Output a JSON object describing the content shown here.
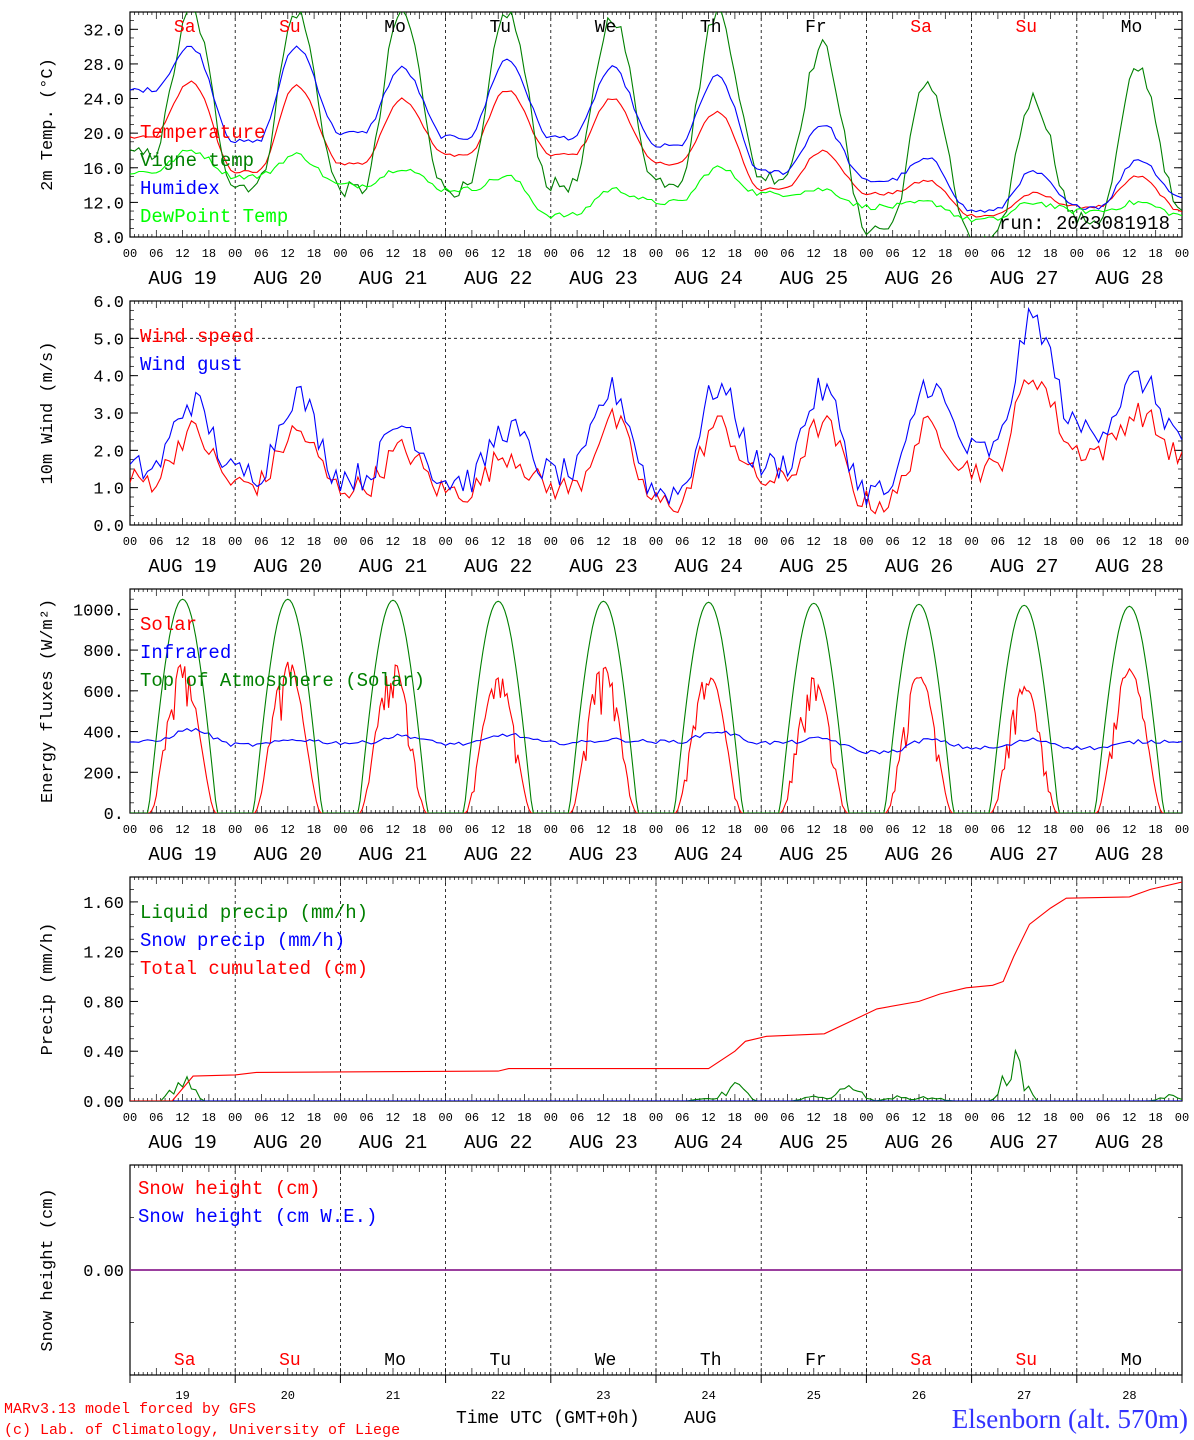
{
  "days": [
    {
      "abbr": "Sa",
      "date": "AUG 19",
      "num": "19",
      "color": "#ff0000"
    },
    {
      "abbr": "Su",
      "date": "AUG 20",
      "num": "20",
      "color": "#ff0000"
    },
    {
      "abbr": "Mo",
      "date": "AUG 21",
      "num": "21",
      "color": "#000000"
    },
    {
      "abbr": "Tu",
      "date": "AUG 22",
      "num": "22",
      "color": "#000000"
    },
    {
      "abbr": "We",
      "date": "AUG 23",
      "num": "23",
      "color": "#000000"
    },
    {
      "abbr": "Th",
      "date": "AUG 24",
      "num": "24",
      "color": "#000000"
    },
    {
      "abbr": "Fr",
      "date": "AUG 25",
      "num": "25",
      "color": "#000000"
    },
    {
      "abbr": "Sa",
      "date": "AUG 26",
      "num": "26",
      "color": "#ff0000"
    },
    {
      "abbr": "Su",
      "date": "AUG 27",
      "num": "27",
      "color": "#ff0000"
    },
    {
      "abbr": "Mo",
      "date": "AUG 28",
      "num": "28",
      "color": "#000000"
    }
  ],
  "hour_ticks": [
    "00",
    "06",
    "12",
    "18"
  ],
  "end_tick": "00",
  "run_label": "run: 2023081918",
  "footer": {
    "credit_line1": "MARv3.13 model forced by GFS",
    "credit_line2": "(c) Lab. of Climatology, University of Liege",
    "axis_title": "Time UTC (GMT+0h)",
    "month": "AUG",
    "station": "Elsenborn (alt. 570m)"
  },
  "chart_data": [
    {
      "id": "temp",
      "type": "line",
      "ylabel": "2m Temp. (°C)",
      "ylim": [
        8,
        34
      ],
      "yticks": [
        "8.0",
        "12.0",
        "16.0",
        "20.0",
        "24.0",
        "28.0",
        "32.0"
      ],
      "dashed_y": [],
      "grid": "vertical day separators dashed",
      "series": [
        {
          "name": "Temperature",
          "color": "#ff0000",
          "day_min": [
            19.5,
            15.5,
            16.5,
            17.5,
            17.5,
            16.5,
            13.5,
            13.0,
            10.5,
            11.5,
            11.0
          ],
          "day_max": [
            26.0,
            25.5,
            24.0,
            25.0,
            24.0,
            22.5,
            18.0,
            14.5,
            13.0,
            15.0
          ],
          "noise": 0.2
        },
        {
          "name": "Vigne temp",
          "color": "#008000",
          "day_min": [
            17.5,
            14.0,
            13.5,
            13.5,
            14.0,
            14.5,
            15.0,
            9.0,
            7.5,
            10.0,
            10.5
          ],
          "day_max": [
            34.0,
            34.0,
            34.0,
            34.0,
            33.5,
            34.0,
            30.0,
            26.0,
            24.0,
            27.5
          ],
          "noise": 0.9
        },
        {
          "name": "Humidex",
          "color": "#0000ff",
          "day_min": [
            25.0,
            19.0,
            20.0,
            19.5,
            19.5,
            18.5,
            15.5,
            14.5,
            11.0,
            11.5,
            12.5
          ],
          "day_max": [
            30.0,
            30.0,
            27.5,
            28.5,
            27.5,
            26.5,
            21.0,
            17.0,
            15.5,
            17.0
          ],
          "noise": 0.3
        },
        {
          "name": "DewPoint Temp",
          "color": "#00ff00",
          "day_min": [
            15.5,
            15.0,
            14.0,
            13.5,
            10.5,
            12.0,
            13.0,
            11.5,
            10.0,
            11.0,
            10.5
          ],
          "day_max": [
            18.0,
            17.5,
            16.0,
            15.0,
            13.5,
            16.0,
            13.5,
            12.0,
            12.0,
            12.0
          ],
          "noise": 0.35
        }
      ]
    },
    {
      "id": "wind",
      "type": "line",
      "ylabel": "10m Wind (m/s)",
      "ylim": [
        0,
        6
      ],
      "yticks": [
        "0.0",
        "1.0",
        "2.0",
        "3.0",
        "4.0",
        "5.0",
        "6.0"
      ],
      "dashed_y": [
        5.0
      ],
      "series": [
        {
          "name": "Wind speed",
          "color": "#ff0000",
          "day_min": [
            1.2,
            1.1,
            1.0,
            0.9,
            1.0,
            0.6,
            1.2,
            0.6,
            1.5,
            2.0,
            1.8
          ],
          "day_max": [
            2.5,
            2.5,
            2.0,
            1.9,
            2.8,
            2.7,
            2.7,
            2.6,
            4.0,
            3.0
          ],
          "noise": 0.35
        },
        {
          "name": "Wind gust",
          "color": "#0000ff",
          "day_min": [
            1.5,
            1.4,
            1.3,
            1.2,
            1.4,
            0.9,
            1.6,
            0.9,
            2.0,
            2.6,
            2.4
          ],
          "day_max": [
            3.3,
            3.5,
            2.7,
            2.6,
            3.6,
            3.7,
            3.6,
            3.8,
            5.5,
            3.9
          ],
          "noise": 0.4
        }
      ]
    },
    {
      "id": "energy",
      "type": "line",
      "ylabel": "Energy fluxes (W/m²)",
      "ylim": [
        0,
        1100
      ],
      "yticks": [
        "0.",
        "200.",
        "400.",
        "600.",
        "800.",
        "1000."
      ],
      "dashed_y": [],
      "series": [
        {
          "name": "Solar",
          "color": "#ff0000",
          "day_peak": [
            740,
            760,
            760,
            690,
            750,
            700,
            680,
            690,
            640,
            720
          ],
          "noise": 0.12
        },
        {
          "name": "Infrared",
          "color": "#0000ff",
          "day_min": [
            350,
            335,
            345,
            340,
            345,
            350,
            345,
            300,
            320,
            320,
            355
          ],
          "day_max": [
            410,
            360,
            380,
            385,
            360,
            400,
            365,
            360,
            360,
            350
          ],
          "noise": 10
        },
        {
          "name": "Top of Atmosphere (Solar)",
          "color": "#008000",
          "day_peak": [
            1050,
            1050,
            1045,
            1040,
            1040,
            1035,
            1030,
            1025,
            1020,
            1015
          ]
        }
      ]
    },
    {
      "id": "precip",
      "type": "line",
      "ylabel": "Precip (mm/h)",
      "ylim": [
        0,
        1.8
      ],
      "yticks": [
        "0.00",
        "0.40",
        "0.80",
        "1.20",
        "1.60"
      ],
      "dashed_y": [],
      "series": [
        {
          "name": "Liquid precip (mm/h)",
          "color": "#008000",
          "bursts": [
            [
              0.5,
              0.25
            ],
            [
              5.5,
              0.03
            ],
            [
              5.75,
              0.18
            ],
            [
              6.5,
              0.05
            ],
            [
              6.85,
              0.2
            ],
            [
              7.3,
              0.05
            ],
            [
              7.6,
              0.05
            ],
            [
              8.4,
              0.45
            ],
            [
              9.9,
              0.06
            ]
          ]
        },
        {
          "name": "Snow precip (mm/h)",
          "color": "#0000ff",
          "value": 0.0
        },
        {
          "name": "Total cumulated (cm)",
          "color": "#ff0000",
          "knots": [
            [
              0,
              0.0
            ],
            [
              0.4,
              0.0
            ],
            [
              0.6,
              0.2
            ],
            [
              1.0,
              0.21
            ],
            [
              1.2,
              0.23
            ],
            [
              3.5,
              0.24
            ],
            [
              3.6,
              0.26
            ],
            [
              5.5,
              0.26
            ],
            [
              5.75,
              0.4
            ],
            [
              5.85,
              0.48
            ],
            [
              6.05,
              0.52
            ],
            [
              6.6,
              0.54
            ],
            [
              6.9,
              0.66
            ],
            [
              7.1,
              0.74
            ],
            [
              7.5,
              0.8
            ],
            [
              7.7,
              0.86
            ],
            [
              7.95,
              0.91
            ],
            [
              8.2,
              0.93
            ],
            [
              8.2,
              0.93
            ],
            [
              8.3,
              0.96
            ],
            [
              8.4,
              1.16
            ],
            [
              8.55,
              1.42
            ],
            [
              8.75,
              1.55
            ],
            [
              8.9,
              1.63
            ],
            [
              9.5,
              1.64
            ],
            [
              9.7,
              1.7
            ],
            [
              10.0,
              1.76
            ]
          ]
        }
      ]
    },
    {
      "id": "snow",
      "type": "line",
      "ylabel": "Snow height (cm)",
      "ylim": [
        -1,
        1
      ],
      "yticks": [
        "0.00"
      ],
      "dashed_y": [],
      "series": [
        {
          "name": "Snow height (cm)",
          "color": "#ff0000",
          "value": 0.0
        },
        {
          "name": "Snow height (cm W.E.)",
          "color": "#0000ff",
          "value": 0.0
        }
      ]
    }
  ]
}
